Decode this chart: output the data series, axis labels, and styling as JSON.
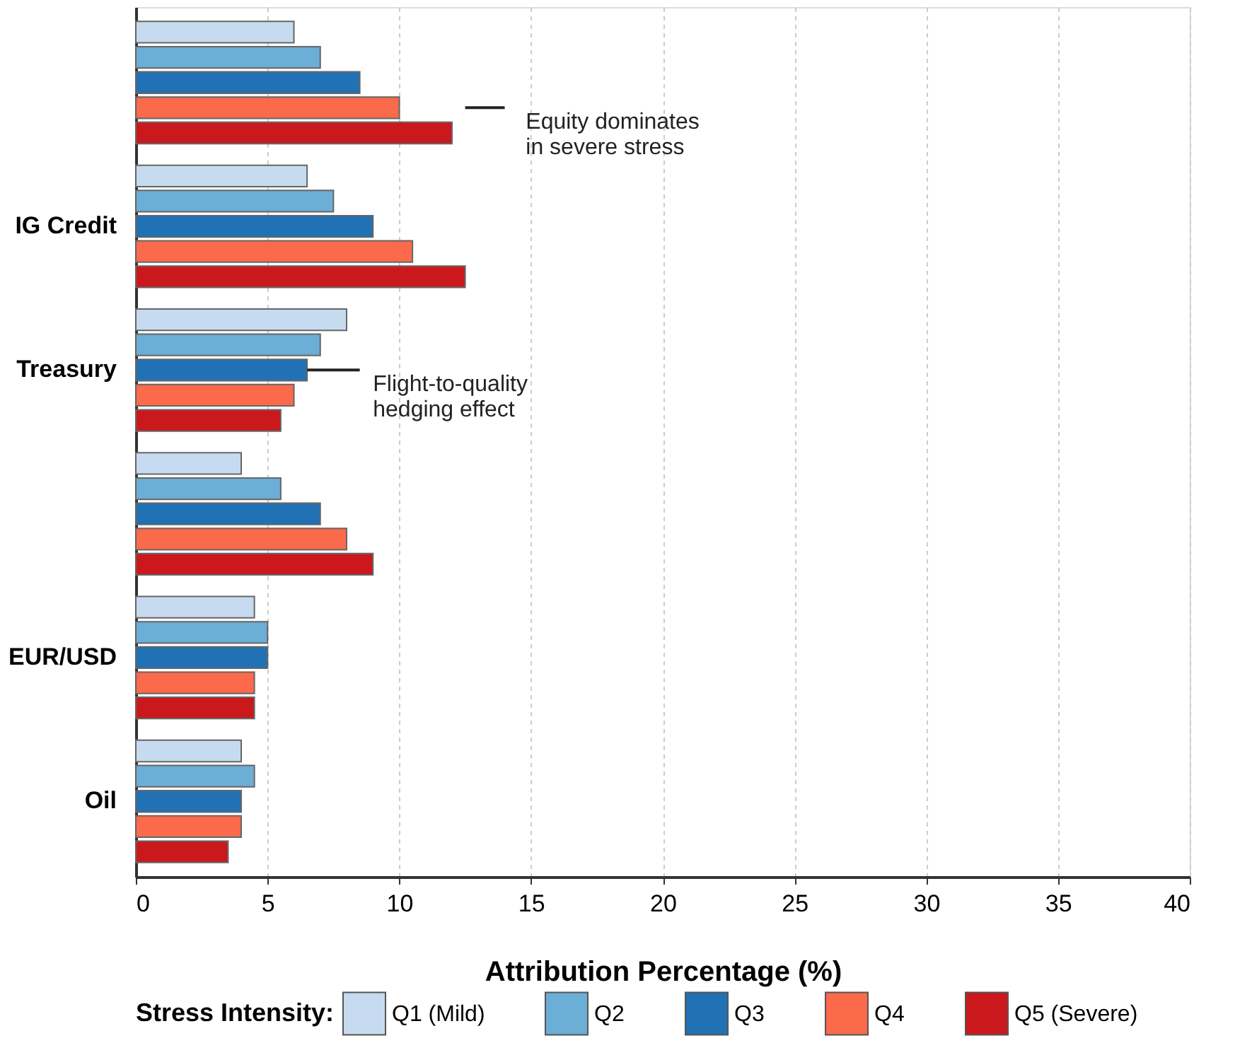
{
  "chart_data": {
    "type": "bar",
    "orientation": "horizontal",
    "categories": [
      null,
      "IG Credit",
      "Treasury",
      null,
      "EUR/USD",
      "Oil"
    ],
    "series": [
      {
        "name": "Q1 (Mild)",
        "color": "#c6dbef",
        "values": [
          6.0,
          6.5,
          8.0,
          4.0,
          4.5,
          4.0
        ]
      },
      {
        "name": "Q2",
        "color": "#6baed6",
        "values": [
          7.0,
          7.5,
          7.0,
          5.5,
          5.0,
          4.5
        ]
      },
      {
        "name": "Q3",
        "color": "#2171b5",
        "values": [
          8.5,
          9.0,
          6.5,
          7.0,
          5.0,
          4.0
        ]
      },
      {
        "name": "Q4",
        "color": "#fb6a4a",
        "values": [
          10.0,
          10.5,
          6.0,
          8.0,
          4.5,
          4.0
        ]
      },
      {
        "name": "Q5 (Severe)",
        "color": "#cb181d",
        "values": [
          12.0,
          12.5,
          5.5,
          9.0,
          4.5,
          3.5
        ]
      }
    ],
    "xlabel": "Attribution Percentage (%)",
    "legend_title": "Stress Intensity:",
    "xlim": [
      0,
      40
    ],
    "xticks": [
      0,
      5,
      10,
      15,
      20,
      25,
      30,
      35,
      40
    ],
    "grid": "x",
    "legend": "bottom",
    "annotations": [
      "Equity dominates\nin severe stress",
      {
        "text": "Flight-to-quality\nhedging effect",
        "x": 6.5,
        "y": "Treasury"
      }
    ]
  }
}
